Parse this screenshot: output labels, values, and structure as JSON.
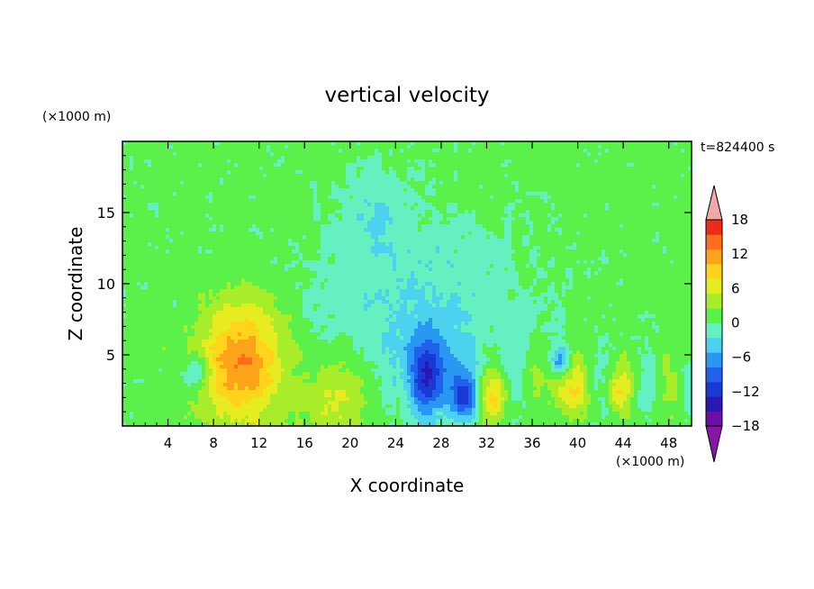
{
  "chart_data": {
    "type": "heatmap",
    "title": "vertical velocity",
    "xlabel": "X coordinate",
    "ylabel": "Z coordinate",
    "x_unit": "(×1000 m)",
    "y_unit": "(×1000 m)",
    "time_label": "t=824400 s",
    "xlim": [
      0,
      50
    ],
    "ylim": [
      0,
      20
    ],
    "x_ticks": [
      4,
      8,
      12,
      16,
      20,
      24,
      28,
      32,
      36,
      40,
      44,
      48
    ],
    "x_tick_labels": [
      "4",
      "8",
      "12",
      "16",
      "20",
      "24",
      "28",
      "32",
      "36",
      "40",
      "44",
      "48"
    ],
    "y_ticks": [
      5,
      10,
      15
    ],
    "y_tick_labels": [
      "5",
      "10",
      "15"
    ],
    "colorbar": {
      "levels": [
        -21,
        -18,
        -15,
        -12,
        -9,
        -6,
        -3,
        0,
        3,
        6,
        9,
        12,
        15,
        18,
        21
      ],
      "tick_values": [
        -18,
        -12,
        -6,
        0,
        6,
        12,
        18
      ],
      "tick_labels": [
        "−18",
        "−12",
        "−6",
        "0",
        "6",
        "12",
        "18"
      ],
      "colors": [
        "#6a10a8",
        "#2a18b4",
        "#1a3ad6",
        "#2062ec",
        "#2a98f2",
        "#4cd2ee",
        "#64f0c0",
        "#5cf04a",
        "#a8ec2a",
        "#e6ec20",
        "#ffd41a",
        "#ffa41a",
        "#ff6e1a",
        "#ee2a1a"
      ],
      "under_color": "#8a14a8",
      "over_color": "#f0a8a8"
    },
    "features": [
      {
        "x": 10.5,
        "z": 4.5,
        "w": 3.6,
        "amplitude": 14,
        "desc": "main updraft"
      },
      {
        "x": 19,
        "z": 2,
        "w": 3,
        "amplitude": 6
      },
      {
        "x": 32.5,
        "z": 2,
        "w": 1.4,
        "amplitude": 8
      },
      {
        "x": 39,
        "z": 2.5,
        "w": 1.6,
        "amplitude": 8
      },
      {
        "x": 43.5,
        "z": 2.5,
        "w": 1.2,
        "amplitude": 6
      },
      {
        "x": 27,
        "z": 3.5,
        "w": 2.4,
        "amplitude": -12,
        "desc": "downdraft cluster"
      },
      {
        "x": 30,
        "z": 2,
        "w": 1.2,
        "amplitude": -11
      },
      {
        "x": 6.5,
        "z": 3.8,
        "w": 1.0,
        "amplitude": -8
      },
      {
        "x": 38.5,
        "z": 4.5,
        "w": 0.8,
        "amplitude": -8
      }
    ]
  }
}
